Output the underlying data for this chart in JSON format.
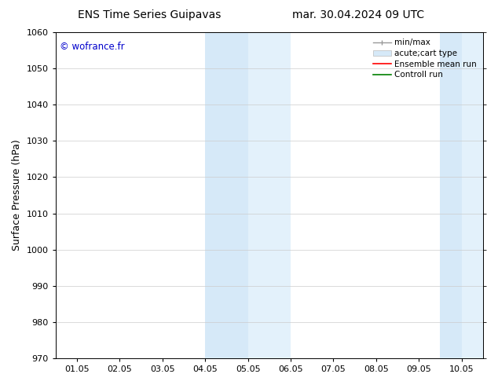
{
  "title_left": "ENS Time Series Guipavas",
  "title_right": "mar. 30.04.2024 09 UTC",
  "ylabel": "Surface Pressure (hPa)",
  "ylim": [
    970,
    1060
  ],
  "yticks": [
    970,
    980,
    990,
    1000,
    1010,
    1020,
    1030,
    1040,
    1050,
    1060
  ],
  "xtick_labels": [
    "01.05",
    "02.05",
    "03.05",
    "04.05",
    "05.05",
    "06.05",
    "07.05",
    "08.05",
    "09.05",
    "10.05"
  ],
  "xtick_positions": [
    0,
    1,
    2,
    3,
    4,
    5,
    6,
    7,
    8,
    9
  ],
  "xlim": [
    -0.5,
    9.5
  ],
  "shaded_regions": [
    {
      "xstart": 3.0,
      "xend": 4.0,
      "color": "#d6e9f8"
    },
    {
      "xstart": 4.0,
      "xend": 5.0,
      "color": "#e3f1fb"
    },
    {
      "xstart": 8.5,
      "xend": 9.0,
      "color": "#d6e9f8"
    },
    {
      "xstart": 9.0,
      "xend": 9.5,
      "color": "#e3f1fb"
    }
  ],
  "watermark": "© wofrance.fr",
  "watermark_color": "#0000cc",
  "background_color": "#ffffff",
  "grid_color": "#cccccc",
  "title_fontsize": 10,
  "label_fontsize": 9,
  "tick_fontsize": 8,
  "legend_fontsize": 7.5
}
